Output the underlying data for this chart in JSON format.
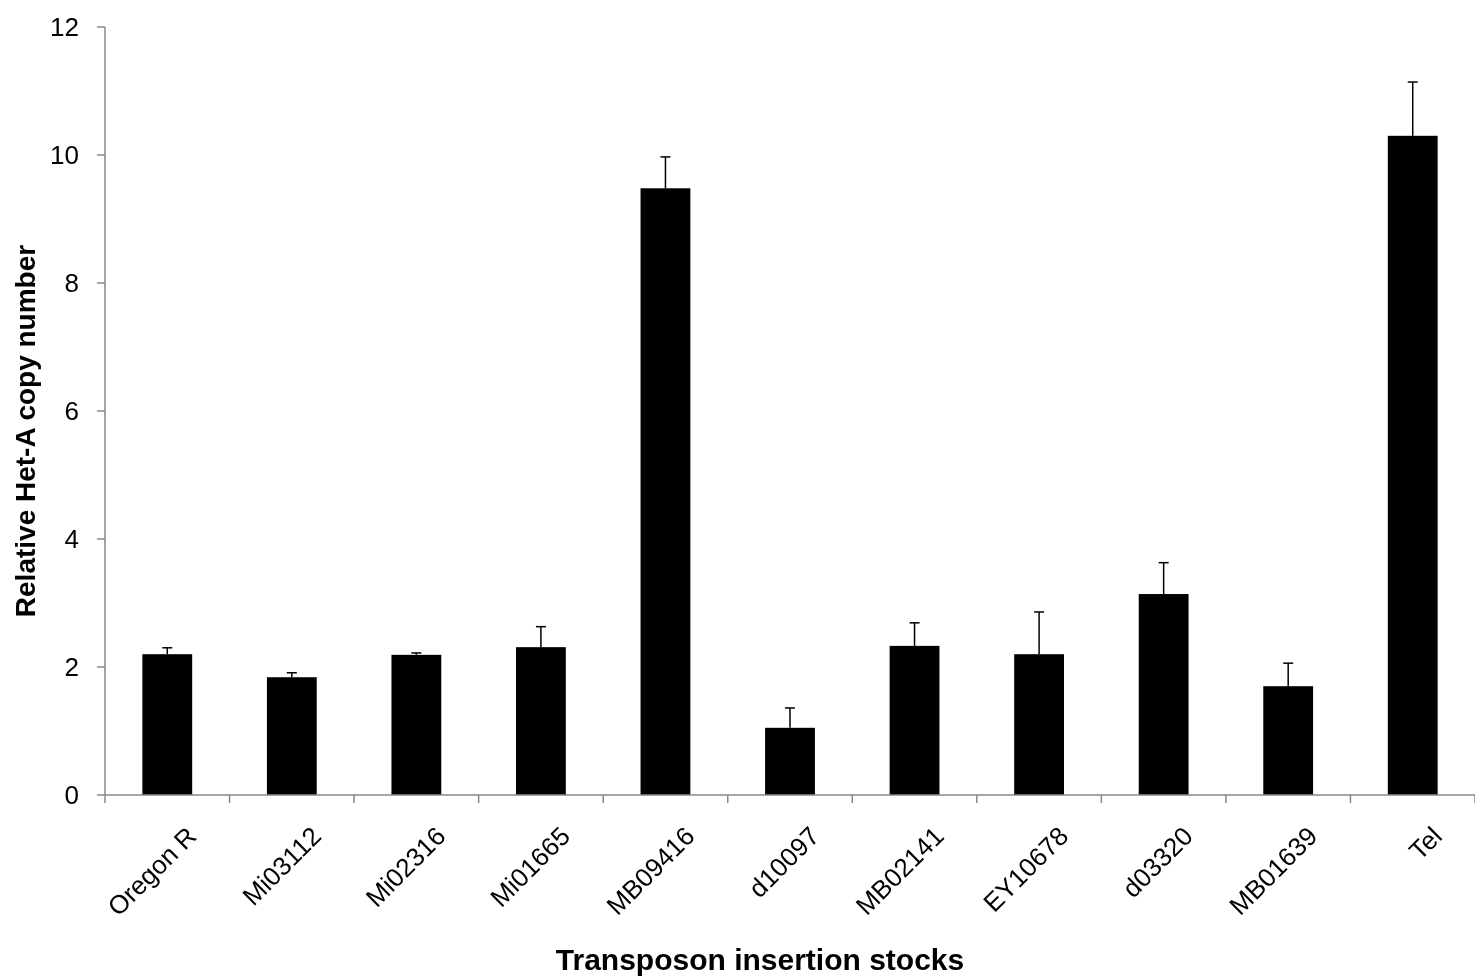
{
  "chart_data": {
    "type": "bar",
    "xlabel": "Transposon insertion stocks",
    "ylabel": "Relative Het-A copy number",
    "categories": [
      "Oregon R",
      "Mi03112",
      "Mi02316",
      "Mi01665",
      "MB09416",
      "d10097",
      "MB02141",
      "EY10678",
      "d03320",
      "MB01639",
      "Tel"
    ],
    "values": [
      2.2,
      1.84,
      2.19,
      2.31,
      9.48,
      1.05,
      2.33,
      2.2,
      3.14,
      1.7,
      10.3
    ],
    "errors": [
      [
        2.2,
        2.3
      ],
      [
        1.84,
        1.91
      ],
      [
        2.19,
        2.22
      ],
      [
        2.31,
        2.63
      ],
      [
        9.48,
        9.97
      ],
      [
        1.05,
        1.36
      ],
      [
        2.33,
        2.69
      ],
      [
        2.2,
        2.86
      ],
      [
        3.14,
        3.63
      ],
      [
        1.7,
        2.06
      ],
      [
        10.3,
        11.14
      ]
    ],
    "color": "#000000",
    "ylim": [
      0,
      12
    ],
    "yticks": [
      0,
      2,
      4,
      6,
      8,
      10,
      12
    ],
    "grid": false
  }
}
